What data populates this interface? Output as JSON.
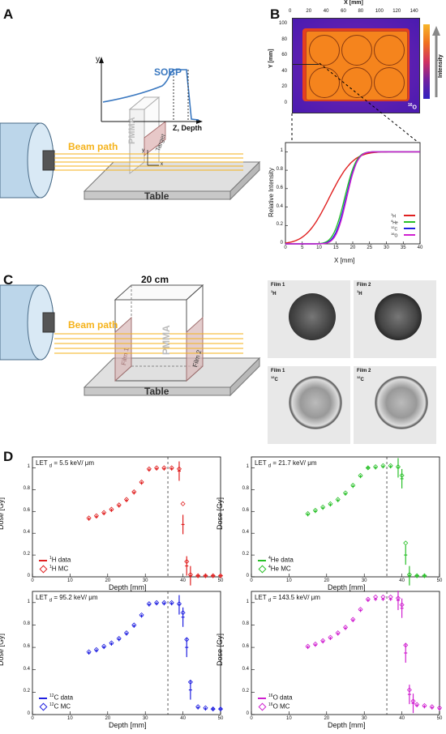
{
  "panels": {
    "A": {
      "letter": "A",
      "y_label": "y",
      "sobp_label": "SOBP",
      "depth_label": "Z, Depth",
      "pmma_label": "PMMA",
      "target_label": "Target",
      "beam_path_label": "Beam path",
      "table_label": "Table",
      "axis_y": "y",
      "axis_x": "x"
    },
    "B": {
      "letter": "B",
      "x_title": "X [mm]",
      "y_title": "Y [mm]",
      "x_ticks": [
        "0",
        "20",
        "40",
        "60",
        "80",
        "100",
        "120",
        "140"
      ],
      "y_ticks": [
        "100",
        "80",
        "60",
        "40",
        "20",
        "0"
      ],
      "colorbar_label": "Intensity",
      "ion_label": "16O",
      "profile": {
        "ylabel": "Relative Intensity",
        "xlabel": "X [mm]",
        "x_ticks": [
          "0",
          "5",
          "10",
          "15",
          "20",
          "25",
          "30",
          "35",
          "40"
        ],
        "y_ticks": [
          "0",
          "0.2",
          "0.4",
          "0.6",
          "0.8",
          "1"
        ],
        "legend": [
          {
            "mass": "1",
            "sym": "H",
            "color": "#e02020"
          },
          {
            "mass": "4",
            "sym": "He",
            "color": "#28c028"
          },
          {
            "mass": "12",
            "sym": "C",
            "color": "#2020e0"
          },
          {
            "mass": "16",
            "sym": "O",
            "color": "#d020d0"
          }
        ]
      }
    },
    "C": {
      "letter": "C",
      "size_label": "20 cm",
      "pmma_label": "PMMA",
      "film1_label": "Film 1",
      "film2_label": "Film 2",
      "beam_path_label": "Beam path",
      "table_label": "Table",
      "films": [
        {
          "name": "Film 1",
          "mass": "1",
          "sym": "H"
        },
        {
          "name": "Film 2",
          "mass": "1",
          "sym": "H"
        },
        {
          "name": "Film 1",
          "mass": "12",
          "sym": "C"
        },
        {
          "name": "Film 2",
          "mass": "12",
          "sym": "C"
        }
      ]
    },
    "D": {
      "letter": "D"
    }
  },
  "chart_data": [
    {
      "type": "scatter",
      "let_value": "= 5.5 keV/ μm",
      "ylabel": "Dose  [Gy]",
      "xlabel": "Depth [mm]",
      "xlim": [
        0,
        50
      ],
      "ylim": [
        0,
        1.1
      ],
      "vline_x": 36,
      "color": "#e02020",
      "legend": [
        {
          "mass": "1",
          "text": "H data"
        },
        {
          "mass": "1",
          "text": "H MC"
        }
      ],
      "data": {
        "x": [
          15,
          17,
          19,
          21,
          23,
          25,
          27,
          29,
          31,
          33,
          35,
          37,
          39,
          40,
          41,
          42,
          44,
          46,
          48,
          50
        ],
        "y": [
          0.53,
          0.55,
          0.58,
          0.61,
          0.65,
          0.7,
          0.77,
          0.86,
          0.98,
          0.99,
          0.99,
          0.99,
          0.97,
          0.48,
          0.1,
          0.01,
          0.01,
          0.01,
          0.01,
          0.01
        ]
      },
      "mc": {
        "x": [
          15,
          17,
          19,
          21,
          23,
          25,
          27,
          29,
          31,
          33,
          35,
          37,
          39,
          40,
          41,
          42,
          44,
          46,
          48,
          50
        ],
        "y": [
          0.54,
          0.56,
          0.59,
          0.62,
          0.66,
          0.71,
          0.78,
          0.87,
          0.99,
          1.0,
          1.0,
          1.0,
          0.99,
          0.67,
          0.14,
          0.02,
          0.01,
          0.01,
          0.01,
          0.01
        ]
      }
    },
    {
      "type": "scatter",
      "let_value": "= 21.7 keV/ μm",
      "ylabel": "Dose  [Gy]",
      "xlabel": "Depth [mm]",
      "xlim": [
        0,
        50
      ],
      "ylim": [
        0,
        1.1
      ],
      "vline_x": 36,
      "color": "#28c028",
      "legend": [
        {
          "mass": "4",
          "text": "He data"
        },
        {
          "mass": "4",
          "text": "He MC"
        }
      ],
      "data": {
        "x": [
          15,
          17,
          19,
          21,
          23,
          25,
          27,
          29,
          31,
          33,
          35,
          37,
          39,
          40,
          41,
          42,
          44,
          46
        ],
        "y": [
          0.57,
          0.6,
          0.63,
          0.66,
          0.7,
          0.76,
          0.83,
          0.92,
          1.0,
          1.0,
          1.01,
          1.01,
          1.0,
          0.9,
          0.2,
          0.01,
          0.01,
          0.01
        ]
      },
      "mc": {
        "x": [
          15,
          17,
          19,
          21,
          23,
          25,
          27,
          29,
          31,
          33,
          35,
          37,
          39,
          40,
          41,
          42,
          44,
          46
        ],
        "y": [
          0.58,
          0.61,
          0.64,
          0.67,
          0.71,
          0.77,
          0.84,
          0.93,
          1.0,
          1.01,
          1.02,
          1.02,
          1.01,
          0.93,
          0.31,
          0.02,
          0.01,
          0.01
        ]
      }
    },
    {
      "type": "scatter",
      "let_value": "= 95.2 keV/ μm",
      "ylabel": "Dose  [Gy]",
      "xlabel": "Depth [mm]",
      "xlim": [
        0,
        50
      ],
      "ylim": [
        0,
        1.1
      ],
      "vline_x": 36,
      "color": "#2020e0",
      "legend": [
        {
          "mass": "12",
          "text": "C data"
        },
        {
          "mass": "12",
          "text": "C MC"
        }
      ],
      "data": {
        "x": [
          15,
          17,
          19,
          21,
          23,
          25,
          27,
          29,
          31,
          33,
          35,
          37,
          39,
          40,
          41,
          42,
          44,
          46,
          48,
          50
        ],
        "y": [
          0.55,
          0.57,
          0.6,
          0.63,
          0.67,
          0.72,
          0.79,
          0.88,
          0.98,
          0.99,
          0.99,
          0.99,
          0.98,
          0.87,
          0.6,
          0.22,
          0.06,
          0.05,
          0.05,
          0.05
        ]
      },
      "mc": {
        "x": [
          15,
          17,
          19,
          21,
          23,
          25,
          27,
          29,
          31,
          33,
          35,
          37,
          39,
          40,
          41,
          42,
          44,
          46,
          48,
          50
        ],
        "y": [
          0.56,
          0.58,
          0.61,
          0.64,
          0.68,
          0.73,
          0.8,
          0.89,
          0.99,
          1.0,
          1.0,
          1.0,
          0.99,
          0.91,
          0.67,
          0.29,
          0.07,
          0.06,
          0.05,
          0.05
        ]
      }
    },
    {
      "type": "scatter",
      "let_value": "= 143.5 keV/ μm",
      "ylabel": "Dose  [Gy]",
      "xlabel": "Depth [mm]",
      "xlim": [
        0,
        50
      ],
      "ylim": [
        0,
        1.1
      ],
      "vline_x": 36,
      "color": "#d020d0",
      "legend": [
        {
          "mass": "16",
          "text": "O data"
        },
        {
          "mass": "16",
          "text": "O MC"
        }
      ],
      "data": {
        "x": [
          15,
          17,
          19,
          21,
          23,
          25,
          27,
          29,
          31,
          33,
          35,
          37,
          39,
          40,
          41,
          42,
          43,
          44,
          46,
          48,
          50
        ],
        "y": [
          0.6,
          0.62,
          0.65,
          0.68,
          0.72,
          0.77,
          0.84,
          0.93,
          1.02,
          1.03,
          1.03,
          1.03,
          1.02,
          0.95,
          0.55,
          0.18,
          0.1,
          0.08,
          0.07,
          0.06,
          0.05
        ]
      },
      "mc": {
        "x": [
          15,
          17,
          19,
          21,
          23,
          25,
          27,
          29,
          31,
          33,
          35,
          37,
          39,
          40,
          41,
          42,
          43,
          44,
          46,
          48,
          50
        ],
        "y": [
          0.61,
          0.63,
          0.66,
          0.69,
          0.73,
          0.78,
          0.85,
          0.94,
          1.03,
          1.05,
          1.05,
          1.05,
          1.04,
          0.98,
          0.62,
          0.22,
          0.12,
          0.09,
          0.08,
          0.07,
          0.06
        ]
      }
    }
  ]
}
